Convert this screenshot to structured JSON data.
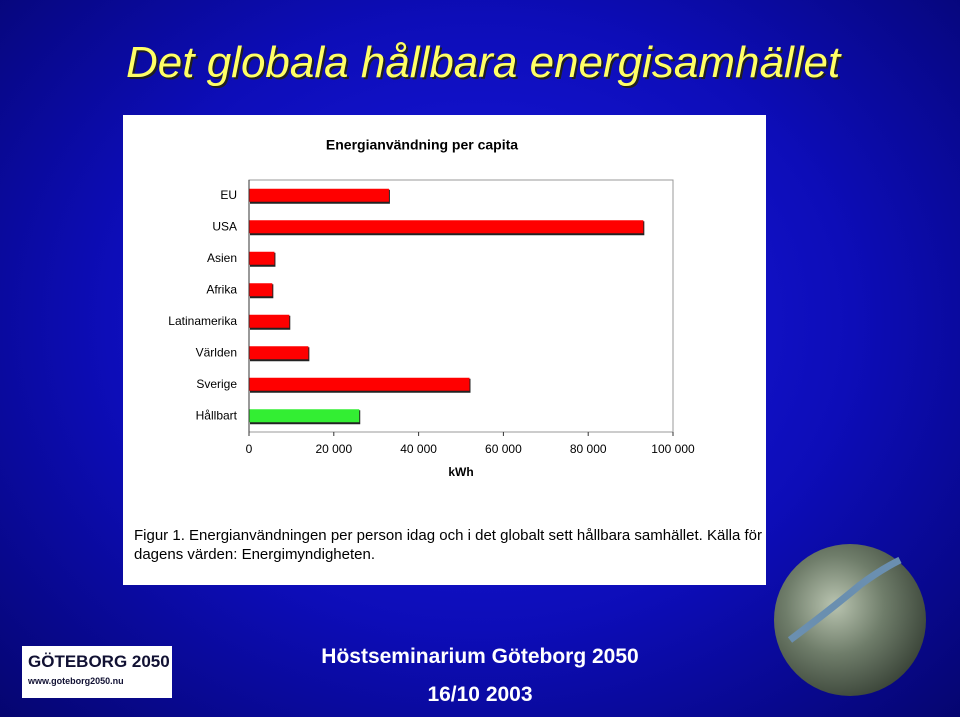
{
  "slide": {
    "title": "Det globala hållbara energisamhället",
    "footer": "Höstseminarium Göteborg 2050",
    "date": "16/10 2003",
    "logo_name": "GÖTEBORG 2050",
    "logo_url": "www.goteborg2050.nu"
  },
  "chart_data": {
    "type": "hbar",
    "title": "Energianvändning per capita",
    "x_label": "kWh",
    "categories": [
      "EU",
      "USA",
      "Asien",
      "Afrika",
      "Latinamerika",
      "Världen",
      "Sverige",
      "Hållbart"
    ],
    "values": [
      33000,
      93000,
      6000,
      5500,
      9500,
      14000,
      52000,
      26000
    ],
    "colors": [
      "#ff0000",
      "#ff0000",
      "#ff0000",
      "#ff0000",
      "#ff0000",
      "#ff0000",
      "#ff0000",
      "#33ee33"
    ],
    "xlim": [
      0,
      100000
    ],
    "xticks": [
      0,
      {
        "value": 20000,
        "label": "20 000"
      },
      {
        "value": 40000,
        "label": "40 000"
      },
      {
        "value": 60000,
        "label": "60 000"
      },
      {
        "value": 80000,
        "label": "80 000"
      },
      {
        "value": 100000,
        "label": "100 000"
      }
    ],
    "caption": "Figur 1. Energianvändningen per person idag och i det globalt sett hållbara samhället. Källa för dagens värden: Energimyndigheten."
  }
}
